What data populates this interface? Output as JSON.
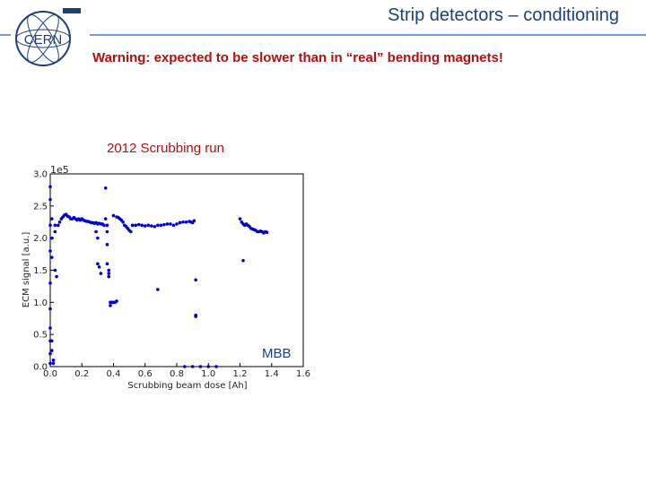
{
  "header": {
    "title": "Strip detectors – conditioning",
    "logo_text": "CERN",
    "accent_color": "#1f3f7a",
    "rule_color": "#7a9bd0"
  },
  "warning": {
    "text": "Warning: expected to be slower than in “real” bending magnets!",
    "color": "#b01010"
  },
  "run_label": "2012 Scrubbing run",
  "annotation": "MBB",
  "chart_data": {
    "type": "scatter",
    "xlabel": "Scrubbing beam dose [Ah]",
    "ylabel": "ECM signal [a.u.]",
    "y_offset_text": "1e5",
    "xlim": [
      0.0,
      1.6
    ],
    "ylim": [
      0.0,
      3.0
    ],
    "x_ticks": [
      "0.0",
      "0.2",
      "0.4",
      "0.6",
      "0.8",
      "1.0",
      "1.2",
      "1.4",
      "1.6"
    ],
    "y_ticks": [
      "0.0",
      "0.5",
      "1.0",
      "1.5",
      "2.0",
      "2.5",
      "3.0"
    ],
    "grid": false,
    "marker_color": "#0000cc",
    "series": [
      {
        "points": [
          [
            0.0,
            2.8
          ],
          [
            0.0,
            2.6
          ],
          [
            0.0,
            2.2
          ],
          [
            0.0,
            1.8
          ],
          [
            0.0,
            1.3
          ],
          [
            0.0,
            0.9
          ],
          [
            0.0,
            0.6
          ],
          [
            0.0,
            0.4
          ],
          [
            0.0,
            0.2
          ],
          [
            0.0,
            0.05
          ],
          [
            0.01,
            2.3
          ],
          [
            0.01,
            2.0
          ],
          [
            0.01,
            1.7
          ],
          [
            0.01,
            0.4
          ],
          [
            0.01,
            0.25
          ],
          [
            0.02,
            0.1
          ],
          [
            0.02,
            0.05
          ],
          [
            0.03,
            2.2
          ],
          [
            0.03,
            2.1
          ],
          [
            0.03,
            1.5
          ],
          [
            0.04,
            1.4
          ],
          [
            0.05,
            2.2
          ],
          [
            0.06,
            2.25
          ],
          [
            0.07,
            2.3
          ],
          [
            0.08,
            2.33
          ],
          [
            0.09,
            2.36
          ],
          [
            0.1,
            2.37
          ],
          [
            0.11,
            2.34
          ],
          [
            0.12,
            2.33
          ],
          [
            0.13,
            2.3
          ],
          [
            0.14,
            2.3
          ],
          [
            0.15,
            2.32
          ],
          [
            0.16,
            2.3
          ],
          [
            0.17,
            2.28
          ],
          [
            0.18,
            2.3
          ],
          [
            0.19,
            2.28
          ],
          [
            0.2,
            2.3
          ],
          [
            0.21,
            2.28
          ],
          [
            0.22,
            2.27
          ],
          [
            0.23,
            2.26
          ],
          [
            0.24,
            2.26
          ],
          [
            0.25,
            2.25
          ],
          [
            0.26,
            2.24
          ],
          [
            0.27,
            2.24
          ],
          [
            0.28,
            2.23
          ],
          [
            0.29,
            2.24
          ],
          [
            0.3,
            2.22
          ],
          [
            0.31,
            2.23
          ],
          [
            0.32,
            2.22
          ],
          [
            0.33,
            2.22
          ],
          [
            0.34,
            2.2
          ],
          [
            0.29,
            2.1
          ],
          [
            0.3,
            2.0
          ],
          [
            0.3,
            1.6
          ],
          [
            0.31,
            1.55
          ],
          [
            0.32,
            1.45
          ],
          [
            0.35,
            2.78
          ],
          [
            0.35,
            2.3
          ],
          [
            0.36,
            2.2
          ],
          [
            0.36,
            2.1
          ],
          [
            0.36,
            1.9
          ],
          [
            0.36,
            1.6
          ],
          [
            0.37,
            1.5
          ],
          [
            0.37,
            1.45
          ],
          [
            0.37,
            1.4
          ],
          [
            0.38,
            1.0
          ],
          [
            0.38,
            0.95
          ],
          [
            0.39,
            1.0
          ],
          [
            0.4,
            1.0
          ],
          [
            0.41,
            1.0
          ],
          [
            0.42,
            1.02
          ],
          [
            0.4,
            2.35
          ],
          [
            0.42,
            2.33
          ],
          [
            0.43,
            2.32
          ],
          [
            0.44,
            2.3
          ],
          [
            0.45,
            2.28
          ],
          [
            0.46,
            2.25
          ],
          [
            0.47,
            2.2
          ],
          [
            0.48,
            2.18
          ],
          [
            0.49,
            2.15
          ],
          [
            0.5,
            2.12
          ],
          [
            0.51,
            2.1
          ],
          [
            0.52,
            2.2
          ],
          [
            0.54,
            2.2
          ],
          [
            0.56,
            2.21
          ],
          [
            0.58,
            2.2
          ],
          [
            0.6,
            2.19
          ],
          [
            0.62,
            2.2
          ],
          [
            0.64,
            2.19
          ],
          [
            0.66,
            2.18
          ],
          [
            0.68,
            2.2
          ],
          [
            0.7,
            2.2
          ],
          [
            0.72,
            2.21
          ],
          [
            0.74,
            2.22
          ],
          [
            0.76,
            2.22
          ],
          [
            0.78,
            2.2
          ],
          [
            0.8,
            2.22
          ],
          [
            0.82,
            2.24
          ],
          [
            0.84,
            2.25
          ],
          [
            0.86,
            2.25
          ],
          [
            0.88,
            2.26
          ],
          [
            0.89,
            2.25
          ],
          [
            0.9,
            2.24
          ],
          [
            0.91,
            2.27
          ],
          [
            0.68,
            1.2
          ],
          [
            0.92,
            1.35
          ],
          [
            0.92,
            0.8
          ],
          [
            0.92,
            0.78
          ],
          [
            0.85,
            0.0
          ],
          [
            0.9,
            0.0
          ],
          [
            0.95,
            0.0
          ],
          [
            1.0,
            0.0
          ],
          [
            1.05,
            0.0
          ],
          [
            1.2,
            2.3
          ],
          [
            1.21,
            2.25
          ],
          [
            1.22,
            2.22
          ],
          [
            1.23,
            2.2
          ],
          [
            1.24,
            2.22
          ],
          [
            1.25,
            2.2
          ],
          [
            1.26,
            2.18
          ],
          [
            1.27,
            2.15
          ],
          [
            1.28,
            2.14
          ],
          [
            1.29,
            2.13
          ],
          [
            1.3,
            2.12
          ],
          [
            1.31,
            2.1
          ],
          [
            1.32,
            2.1
          ],
          [
            1.33,
            2.11
          ],
          [
            1.34,
            2.1
          ],
          [
            1.35,
            2.08
          ],
          [
            1.36,
            2.1
          ],
          [
            1.37,
            2.09
          ],
          [
            1.22,
            1.65
          ]
        ]
      }
    ]
  }
}
